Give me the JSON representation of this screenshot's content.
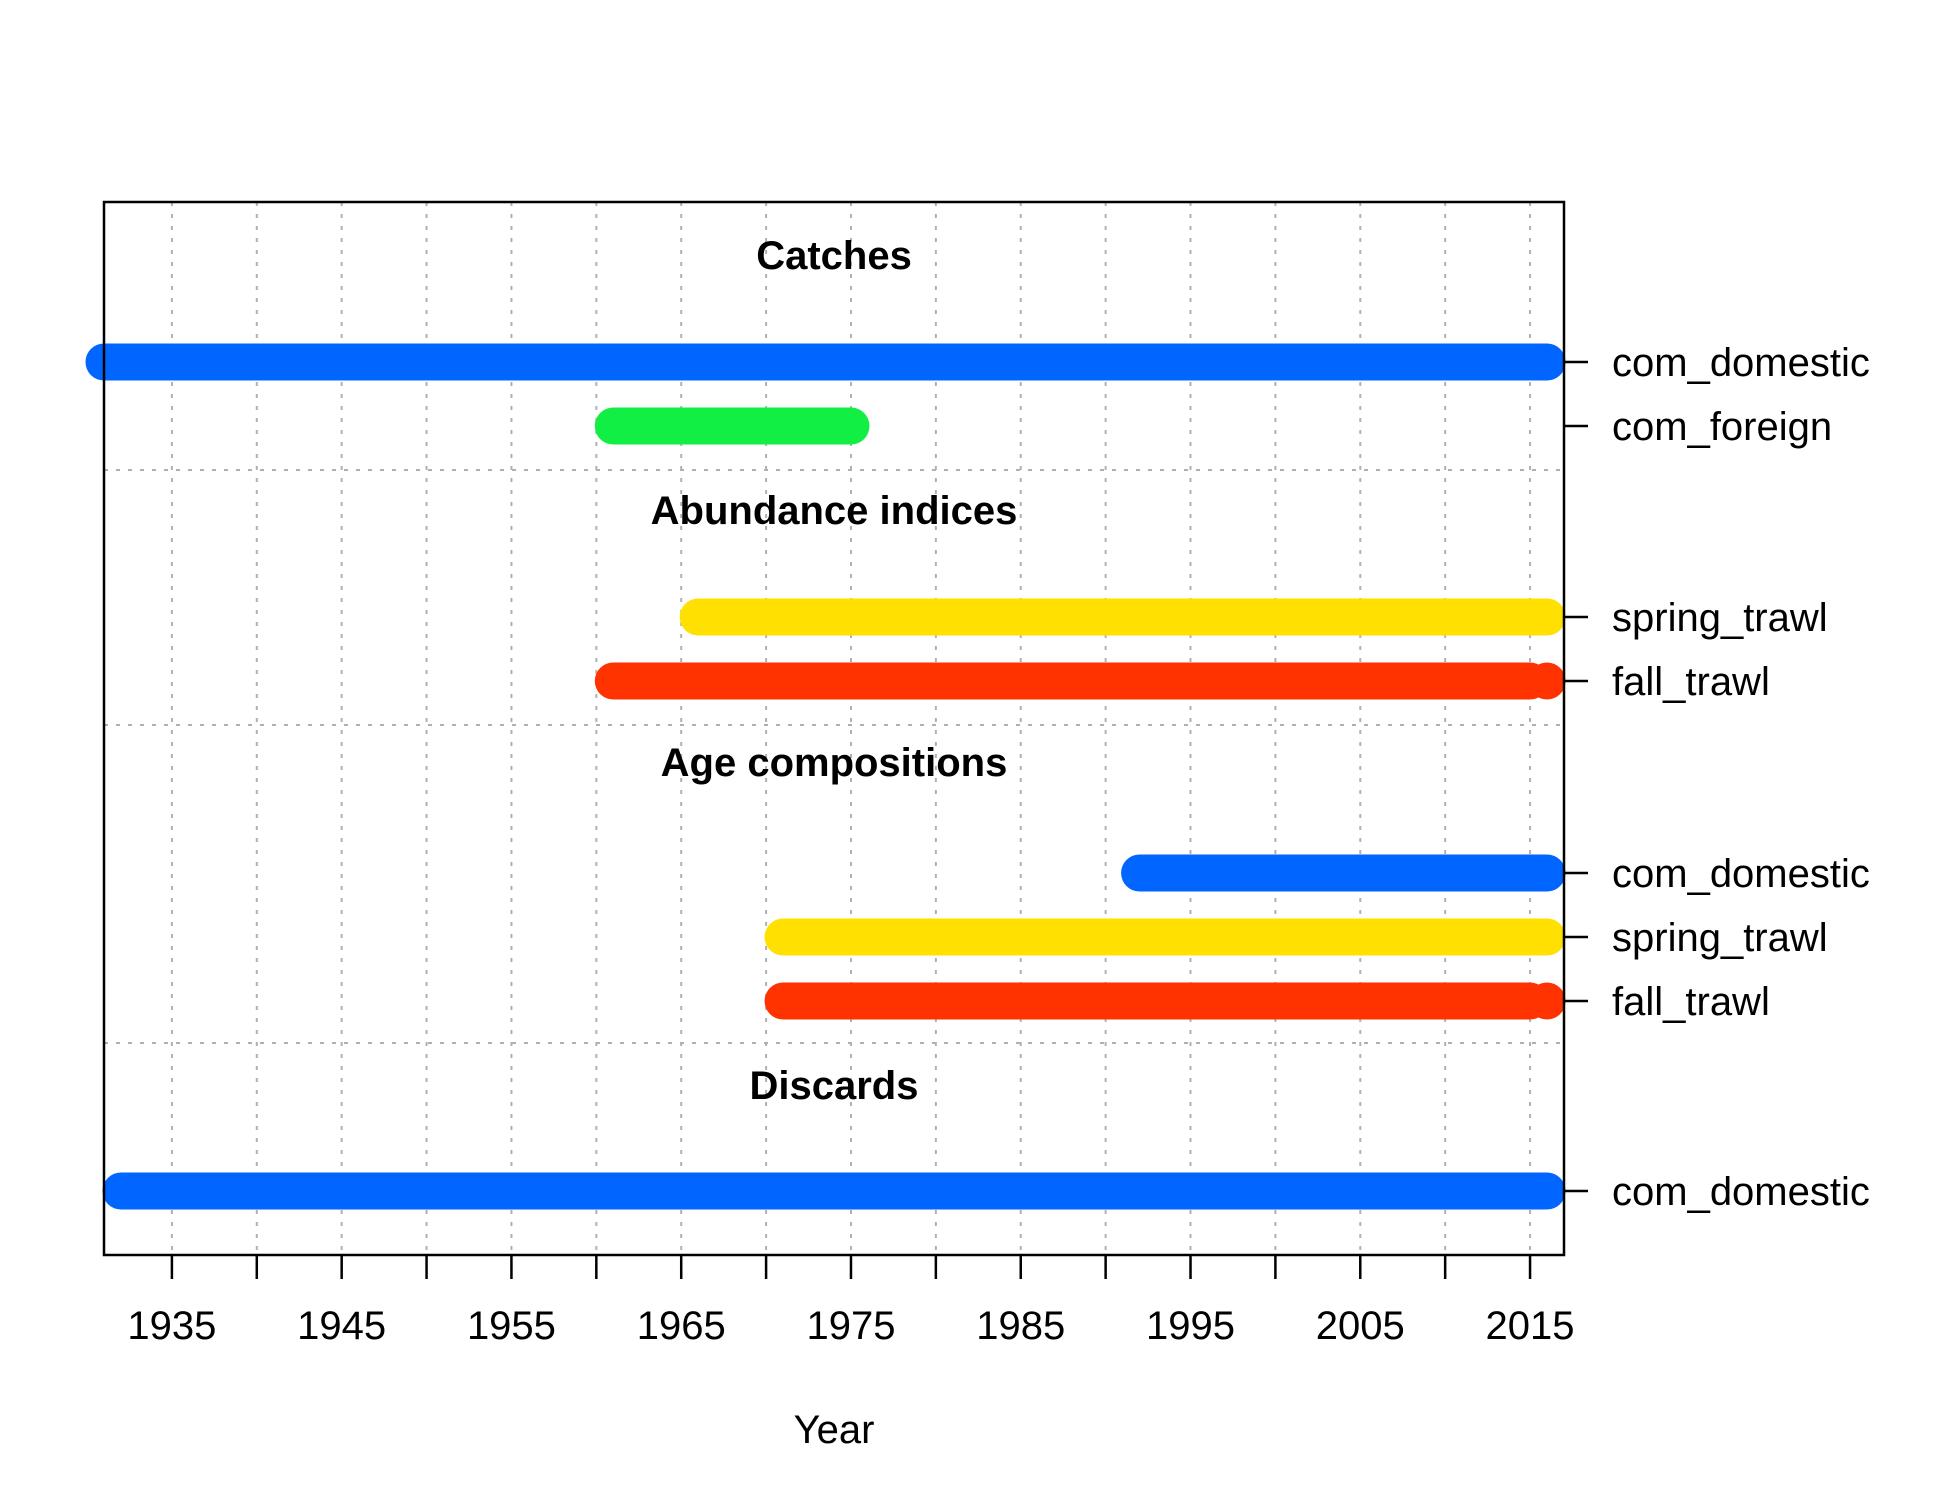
{
  "chart_data": {
    "type": "timeline",
    "xlabel": "Year",
    "x_ticks": [
      1935,
      1945,
      1955,
      1965,
      1975,
      1985,
      1995,
      2005,
      2015
    ],
    "x_minor_ticks": [
      1935,
      1940,
      1945,
      1950,
      1955,
      1960,
      1965,
      1970,
      1975,
      1980,
      1985,
      1990,
      1995,
      2000,
      2005,
      2010,
      2015
    ],
    "xlim": [
      1931,
      2017
    ],
    "grid": true,
    "colors": {
      "com_domestic": "#0066ff",
      "com_foreign": "#11ee44",
      "spring_trawl": "#ffe000",
      "fall_trawl": "#ff3300"
    },
    "sections": [
      {
        "title": "Catches",
        "series": [
          {
            "name": "com_domestic",
            "color_key": "com_domestic",
            "segments": [
              [
                1931,
                2016
              ]
            ]
          },
          {
            "name": "com_foreign",
            "color_key": "com_foreign",
            "segments": [
              [
                1961,
                1975
              ]
            ]
          }
        ]
      },
      {
        "title": "Abundance indices",
        "series": [
          {
            "name": "spring_trawl",
            "color_key": "spring_trawl",
            "segments": [
              [
                1966,
                2016
              ]
            ]
          },
          {
            "name": "fall_trawl",
            "color_key": "fall_trawl",
            "segments": [
              [
                1961,
                1971
              ],
              [
                1971,
                2015
              ],
              [
                2016,
                2016
              ]
            ]
          }
        ]
      },
      {
        "title": "Age compositions",
        "series": [
          {
            "name": "com_domestic",
            "color_key": "com_domestic",
            "segments": [
              [
                1992,
                2016
              ]
            ]
          },
          {
            "name": "spring_trawl",
            "color_key": "spring_trawl",
            "segments": [
              [
                1971,
                2016
              ]
            ]
          },
          {
            "name": "fall_trawl",
            "color_key": "fall_trawl",
            "segments": [
              [
                1971,
                2015
              ],
              [
                2016,
                2016
              ]
            ]
          }
        ]
      },
      {
        "title": "Discards",
        "series": [
          {
            "name": "com_domestic",
            "color_key": "com_domestic",
            "segments": [
              [
                1932,
                2016
              ]
            ]
          }
        ]
      }
    ]
  }
}
